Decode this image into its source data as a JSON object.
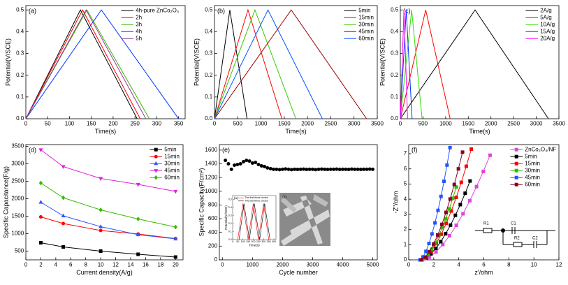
{
  "chart_data": [
    {
      "type": "line",
      "label": "(a)",
      "xlabel": "Time(s)",
      "ylabel": "Potential(V/SCE)",
      "xlim": [
        0,
        365
      ],
      "ylim": [
        0,
        0.52
      ],
      "xticks": [
        0,
        50,
        100,
        150,
        200,
        250,
        300,
        350
      ],
      "yticks": [
        {
          "value": 0,
          "label": "0.0"
        },
        0.1,
        0.2,
        0.3,
        0.4,
        0.5
      ],
      "legend": "upper right",
      "series": [
        {
          "name": "4h-pure ZnCo₂O₄",
          "color": "#000000",
          "x": [
            0,
            125,
            255
          ],
          "values": [
            0,
            0.5,
            0
          ]
        },
        {
          "name": "2h",
          "color": "#ff0000",
          "x": [
            0,
            130,
            262
          ],
          "values": [
            0,
            0.5,
            0
          ]
        },
        {
          "name": "3h",
          "color": "#33bb00",
          "x": [
            0,
            140,
            283
          ],
          "values": [
            0,
            0.5,
            0
          ]
        },
        {
          "name": "4h",
          "color": "#0033ff",
          "x": [
            0,
            173,
            350
          ],
          "values": [
            0,
            0.5,
            0
          ]
        },
        {
          "name": "5h",
          "color": "#993399",
          "x": [
            0,
            138,
            275
          ],
          "values": [
            0,
            0.5,
            0
          ]
        }
      ]
    },
    {
      "type": "line",
      "label": "(b)",
      "xlabel": "Time(s)",
      "ylabel": "Potential(V/SCE)",
      "xlim": [
        0,
        3500
      ],
      "ylim": [
        0,
        0.52
      ],
      "xticks": [
        0,
        500,
        1000,
        1500,
        2000,
        2500,
        3000,
        3500
      ],
      "yticks": [
        {
          "value": 0,
          "label": "0.0"
        },
        0.1,
        0.2,
        0.3,
        0.4,
        0.5
      ],
      "legend": "upper right",
      "series": [
        {
          "name": "5min",
          "color": "#000000",
          "x": [
            0,
            330,
            700
          ],
          "values": [
            0,
            0.5,
            0
          ]
        },
        {
          "name": "15min",
          "color": "#ff0000",
          "x": [
            0,
            720,
            1450
          ],
          "values": [
            0,
            0.5,
            0
          ]
        },
        {
          "name": "30min",
          "color": "#33cc00",
          "x": [
            0,
            870,
            1750
          ],
          "values": [
            0,
            0.5,
            0
          ]
        },
        {
          "name": "45min",
          "color": "#990000",
          "x": [
            0,
            1650,
            3270
          ],
          "values": [
            0,
            0.5,
            0
          ]
        },
        {
          "name": "60min",
          "color": "#0055ff",
          "x": [
            0,
            1150,
            2320
          ],
          "values": [
            0,
            0.5,
            0
          ]
        }
      ]
    },
    {
      "type": "line",
      "label": "(c)",
      "xlabel": "Time(s)",
      "ylabel": "Potential(V/SCE)",
      "xlim": [
        0,
        3500
      ],
      "ylim": [
        0,
        0.52
      ],
      "xticks": [
        0,
        500,
        1000,
        1500,
        2000,
        2500,
        3000,
        3500
      ],
      "yticks": [
        {
          "value": 0,
          "label": "0.0"
        },
        0.1,
        0.2,
        0.3,
        0.4,
        0.5
      ],
      "legend": "upper right",
      "series": [
        {
          "name": "2A/g",
          "color": "#000000",
          "x": [
            0,
            1650,
            3270
          ],
          "values": [
            0,
            0.5,
            0
          ]
        },
        {
          "name": "5A/g",
          "color": "#ff0000",
          "x": [
            0,
            560,
            1100
          ],
          "values": [
            0,
            0.5,
            0
          ]
        },
        {
          "name": "10A/g",
          "color": "#33dd00",
          "x": [
            0,
            250,
            480
          ],
          "values": [
            0,
            0.5,
            0
          ]
        },
        {
          "name": "15A/g",
          "color": "#0033ff",
          "x": [
            0,
            130,
            260
          ],
          "values": [
            0,
            0.5,
            0
          ]
        },
        {
          "name": "20A/g",
          "color": "#ff00ff",
          "x": [
            0,
            80,
            160
          ],
          "values": [
            0,
            0.5,
            0
          ]
        }
      ]
    },
    {
      "type": "line",
      "label": "(d)",
      "xlabel": "Current density(A/g)",
      "ylabel": "Specific Capacitance(F/g)",
      "xlim": [
        0,
        21
      ],
      "ylim": [
        250,
        3550
      ],
      "xticks": [
        0,
        2,
        4,
        6,
        8,
        10,
        12,
        14,
        16,
        18,
        20
      ],
      "yticks": [
        500,
        1000,
        1500,
        2000,
        2500,
        3000,
        3500
      ],
      "legend": "upper right",
      "x": [
        2,
        5,
        10,
        15,
        20
      ],
      "series": [
        {
          "name": "5min",
          "color": "#000000",
          "marker": "square",
          "values": [
            740,
            620,
            500,
            410,
            330
          ]
        },
        {
          "name": "15min",
          "color": "#ff0000",
          "marker": "circle",
          "values": [
            1480,
            1290,
            1090,
            990,
            860
          ]
        },
        {
          "name": "30min",
          "color": "#3355ff",
          "marker": "triangle-up",
          "values": [
            1900,
            1510,
            1200,
            970,
            850
          ]
        },
        {
          "name": "45min",
          "color": "#dd22dd",
          "marker": "triangle-down",
          "values": [
            3400,
            2920,
            2580,
            2410,
            2210
          ]
        },
        {
          "name": "60min",
          "color": "#33bb00",
          "marker": "diamond",
          "values": [
            2450,
            2030,
            1680,
            1420,
            1190
          ]
        }
      ]
    },
    {
      "type": "scatter",
      "label": "(e)",
      "xlabel": "Cycle number",
      "ylabel": "Specific Capacity(F/cm²)",
      "xlim": [
        -100,
        5150
      ],
      "ylim": [
        0,
        1680
      ],
      "xticks": [
        0,
        1000,
        2000,
        3000,
        4000,
        5000
      ],
      "yticks": [
        0,
        200,
        400,
        600,
        800,
        1000,
        1200,
        1400,
        1600
      ],
      "series": [
        {
          "color": "#000000",
          "marker": "circle",
          "x": [
            100,
            200,
            300,
            400,
            500,
            600,
            700,
            800,
            900,
            1000,
            1100,
            1200,
            1300,
            1400,
            1500,
            1600,
            1700,
            1800,
            1900,
            2000,
            2100,
            2200,
            2300,
            2400,
            2500,
            2600,
            2700,
            2800,
            2900,
            3000,
            3100,
            3200,
            3300,
            3400,
            3500,
            3600,
            3700,
            3800,
            3900,
            4000,
            4100,
            4200,
            4300,
            4400,
            4500,
            4600,
            4700,
            4800,
            4900,
            5000
          ],
          "values": [
            1450,
            1400,
            1320,
            1380,
            1390,
            1400,
            1430,
            1450,
            1440,
            1410,
            1420,
            1390,
            1370,
            1360,
            1340,
            1330,
            1320,
            1320,
            1315,
            1320,
            1325,
            1320,
            1315,
            1320,
            1318,
            1320,
            1322,
            1318,
            1320,
            1320,
            1315,
            1320,
            1322,
            1320,
            1318,
            1320,
            1320,
            1322,
            1318,
            1320,
            1320,
            1318,
            1322,
            1320,
            1320,
            1318,
            1320,
            1320,
            1322,
            1320
          ]
        }
      ],
      "inset": {
        "type": "line",
        "label": "(a)",
        "xlabel": "Time(s)",
        "ylabel": "Potential(V/SCE)",
        "xlim": [
          0,
          420
        ],
        "ylim": [
          0,
          0.55
        ],
        "xticks": [
          0,
          50,
          100,
          150,
          200,
          250,
          300,
          350,
          400
        ],
        "yticks": [
          {
            "value": 0,
            "label": "0.0"
          },
          0.1,
          0.2,
          0.3,
          0.4,
          0.5
        ],
        "legend": "upper left",
        "series": [
          {
            "name": "The first three circles",
            "color": "#ff0000",
            "x": [
              50,
              100,
              150,
              200,
              250,
              300,
              350
            ],
            "values": [
              0,
              0.45,
              0,
              0.45,
              0,
              0.45,
              0
            ]
          },
          {
            "name": "The last three circles",
            "color": "#000000",
            "x": [
              62,
              110,
              162,
              210,
              262,
              310,
              362
            ],
            "values": [
              0,
              0.45,
              0,
              0.45,
              0,
              0.45,
              0
            ]
          }
        ]
      },
      "image_label": "(b)"
    },
    {
      "type": "line",
      "label": "(f)",
      "xlabel": "z'/ohm",
      "ylabel": "-Z''/ohm",
      "xlim": [
        0,
        12
      ],
      "ylim": [
        0,
        7.6
      ],
      "xticks": [
        0,
        2,
        4,
        6,
        8,
        10,
        12
      ],
      "yticks": [
        0,
        1,
        2,
        3,
        4,
        5,
        6,
        7
      ],
      "legend": "upper right",
      "circuit_labels": [
        "R1",
        "C1",
        "R2",
        "C2"
      ],
      "series": [
        {
          "name": "ZnCo₂O₄/NF",
          "color": "#dd44dd",
          "marker": "square",
          "x": [
            1.1,
            1.64,
            2.18,
            2.72,
            3.26,
            3.8,
            4.34,
            4.88,
            5.42,
            5.96,
            6.5
          ],
          "values": [
            0,
            0.17,
            0.52,
            1.01,
            1.59,
            2.28,
            3.04,
            3.9,
            4.83,
            5.83,
            6.9
          ]
        },
        {
          "name": "5min",
          "color": "#000000",
          "marker": "square",
          "x": [
            1.0,
            1.39,
            1.78,
            2.17,
            2.56,
            2.95,
            3.34,
            3.73,
            4.12,
            4.51,
            4.9
          ],
          "values": [
            0,
            0.13,
            0.4,
            0.76,
            1.2,
            1.72,
            2.29,
            2.94,
            3.64,
            4.39,
            5.2
          ]
        },
        {
          "name": "15min",
          "color": "#ff0000",
          "marker": "square",
          "x": [
            1.0,
            1.4,
            1.8,
            2.2,
            2.6,
            3.0,
            3.4,
            3.8,
            4.2,
            4.6,
            5.0
          ],
          "values": [
            0,
            0.18,
            0.55,
            1.07,
            1.69,
            2.41,
            3.22,
            4.12,
            5.11,
            6.17,
            7.3
          ]
        },
        {
          "name": "30min",
          "color": "#33bb00",
          "marker": "square",
          "x": [
            1.0,
            1.28,
            1.56,
            1.84,
            2.12,
            2.4,
            2.68,
            2.96,
            3.24,
            3.52,
            3.8
          ],
          "values": [
            0,
            0.12,
            0.36,
            0.7,
            1.11,
            1.58,
            2.12,
            2.71,
            3.36,
            4.06,
            4.8
          ]
        },
        {
          "name": "45min",
          "color": "#2255ff",
          "marker": "square",
          "x": [
            0.9,
            1.14,
            1.38,
            1.62,
            1.86,
            2.1,
            2.34,
            2.58,
            2.82,
            3.06,
            3.3
          ],
          "values": [
            0,
            0.19,
            0.56,
            1.08,
            1.71,
            2.44,
            3.26,
            4.18,
            5.18,
            6.25,
            7.4
          ]
        },
        {
          "name": "60min",
          "color": "#880022",
          "marker": "square",
          "x": [
            1.0,
            1.33,
            1.66,
            1.99,
            2.32,
            2.65,
            2.98,
            3.31,
            3.64,
            3.97,
            4.3
          ],
          "values": [
            0,
            0.18,
            0.54,
            1.04,
            1.64,
            2.34,
            3.13,
            4.01,
            4.97,
            6.0,
            7.1
          ]
        }
      ]
    }
  ]
}
